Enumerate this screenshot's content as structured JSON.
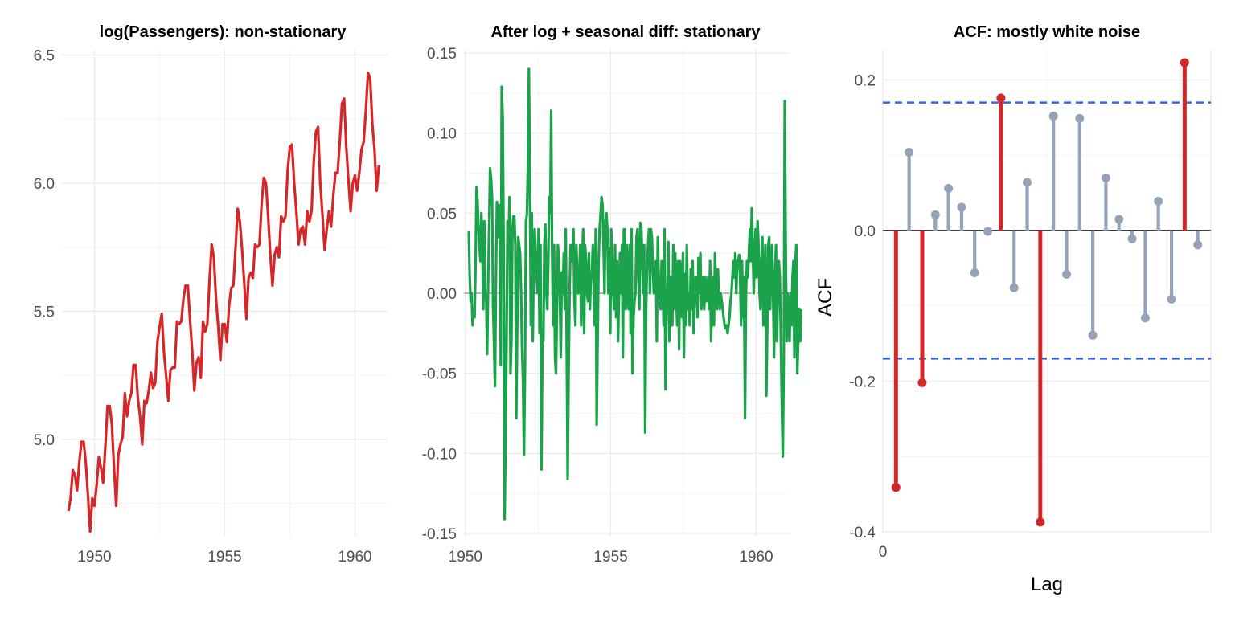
{
  "chart_data": [
    {
      "type": "line",
      "title": "log(Passengers): non-stationary",
      "xlabel": "",
      "ylabel": "",
      "xlim": [
        1948.75,
        1961.25
      ],
      "ylim": [
        4.62,
        6.52
      ],
      "x_ticks": [
        1950,
        1955,
        1960
      ],
      "x_tick_labels": [
        "1950",
        "1955",
        "1960"
      ],
      "y_ticks": [
        5.0,
        5.5,
        6.0,
        6.5
      ],
      "y_tick_labels": [
        "5.0",
        "5.5",
        "6.0",
        "6.5"
      ],
      "grid": true,
      "color": "#d62728",
      "series": [
        {
          "x_start": 1949.0,
          "x_step": 0.0833333,
          "values": [
            4.72,
            4.77,
            4.88,
            4.86,
            4.8,
            4.91,
            4.99,
            4.99,
            4.91,
            4.78,
            4.64,
            4.77,
            4.74,
            4.82,
            4.93,
            4.89,
            4.83,
            4.97,
            5.13,
            5.13,
            5.06,
            4.89,
            4.74,
            4.94,
            4.98,
            5.01,
            5.18,
            5.09,
            5.15,
            5.18,
            5.29,
            5.29,
            5.16,
            5.09,
            4.98,
            5.15,
            5.14,
            5.19,
            5.26,
            5.2,
            5.22,
            5.38,
            5.44,
            5.49,
            5.34,
            5.25,
            5.15,
            5.27,
            5.28,
            5.28,
            5.46,
            5.45,
            5.46,
            5.55,
            5.6,
            5.6,
            5.47,
            5.35,
            5.19,
            5.3,
            5.32,
            5.24,
            5.46,
            5.42,
            5.45,
            5.62,
            5.76,
            5.71,
            5.55,
            5.44,
            5.31,
            5.45,
            5.45,
            5.38,
            5.52,
            5.59,
            5.6,
            5.75,
            5.9,
            5.85,
            5.74,
            5.61,
            5.47,
            5.63,
            5.65,
            5.63,
            5.76,
            5.75,
            5.76,
            5.92,
            6.02,
            6.0,
            5.87,
            5.72,
            5.6,
            5.72,
            5.75,
            5.71,
            5.87,
            5.85,
            5.87,
            6.05,
            6.14,
            6.15,
            6.0,
            5.89,
            5.76,
            5.82,
            5.83,
            5.76,
            5.89,
            5.85,
            5.89,
            6.08,
            6.2,
            6.22,
            6.0,
            5.88,
            5.74,
            5.82,
            5.89,
            5.83,
            5.95,
            6.04,
            6.04,
            6.16,
            6.31,
            6.33,
            6.14,
            6.01,
            5.89,
            6.0,
            6.03,
            5.97,
            6.04,
            6.13,
            6.16,
            6.28,
            6.43,
            6.41,
            6.23,
            6.13,
            5.97,
            6.07
          ]
        }
      ]
    },
    {
      "type": "line",
      "title": "After log + seasonal diff: stationary",
      "xlabel": "",
      "ylabel": "",
      "xlim": [
        1949.95,
        1961.15
      ],
      "ylim": [
        -0.152,
        0.152
      ],
      "x_ticks": [
        1950,
        1955,
        1960
      ],
      "x_tick_labels": [
        "1950",
        "1955",
        "1960"
      ],
      "y_ticks": [
        -0.15,
        -0.1,
        -0.05,
        0.0,
        0.05,
        0.1,
        0.15
      ],
      "y_tick_labels": [
        "-0.15",
        "-0.10",
        "-0.05",
        "0.00",
        "0.05",
        "0.10",
        "0.15"
      ],
      "grid": true,
      "reference_line": 0,
      "color": "#1aa34a",
      "series": [
        {
          "x_start": 1950.0833,
          "x_step": 0.0333333,
          "values": [
            0.038,
            0.038,
            0.01,
            -0.005,
            0.0,
            -0.02,
            -0.01,
            -0.015,
            0.02,
            0.066,
            0.058,
            0.04,
            0.03,
            0.02,
            0.05,
            0.03,
            -0.01,
            0.045,
            0.0,
            -0.005,
            -0.038,
            0.006,
            0.04,
            0.078,
            0.072,
            0.06,
            -0.008,
            -0.03,
            -0.058,
            0.01,
            0.057,
            0.035,
            0.055,
            0.04,
            -0.045,
            0.129,
            0.11,
            0.03,
            -0.141,
            -0.09,
            -0.03,
            0.045,
            0.03,
            0.06,
            -0.05,
            -0.03,
            0.04,
            0.048,
            0.048,
            0.03,
            -0.078,
            -0.02,
            0.035,
            0.03,
            0.025,
            0.0,
            -0.035,
            -0.055,
            -0.101,
            -0.05,
            0.045,
            0.049,
            0.08,
            0.14,
            0.07,
            -0.02,
            0.05,
            -0.03,
            0.02,
            0.04,
            0.025,
            0.01,
            0.0,
            0.04,
            -0.025,
            0.03,
            -0.11,
            -0.03,
            -0.03,
            0.03,
            0.043,
            0.0,
            -0.01,
            0.02,
            0.06,
            0.05,
            0.114,
            0.025,
            -0.02,
            0.03,
            -0.04,
            -0.05,
            -0.01,
            0.03,
            0.02,
            0.0,
            -0.04,
            0.013,
            0.0,
            0.025,
            -0.01,
            0.04,
            -0.03,
            -0.116,
            -0.05,
            0.0,
            0.03,
            0.03,
            0.02,
            0.04,
            -0.005,
            -0.02,
            0.03,
            0.013,
            0.0,
            0.01,
            0.03,
            -0.02,
            0.02,
            0.04,
            -0.025,
            0.03,
            0.02,
            0.0,
            -0.005,
            0.025,
            -0.01,
            0.012,
            0.01,
            0.03,
            0.0,
            -0.02,
            0.04,
            -0.082,
            -0.03,
            0.02,
            0.04,
            0.05,
            0.06,
            0.055,
            0.03,
            0.0,
            0.045,
            0.05,
            0.04,
            0.0,
            0.028,
            -0.025,
            0.04,
            0.023,
            0.0,
            -0.01,
            0.03,
            -0.015,
            0.02,
            -0.03,
            0.0,
            0.025,
            0.0,
            0.03,
            -0.04,
            0.04,
            0.04,
            -0.01,
            0.03,
            0.0,
            -0.01,
            0.03,
            -0.025,
            0.04,
            -0.05,
            -0.015,
            -0.005,
            0.0,
            0.035,
            0.04,
            0.01,
            -0.01,
            0.044,
            0.042,
            0.02,
            0.0,
            0.03,
            -0.087,
            -0.01,
            0.02,
            0.03,
            0.04,
            0.0,
            0.04,
            0.035,
            0.015,
            0.0,
            0.01,
            0.02,
            -0.03,
            0.035,
            0.01,
            0.0,
            -0.01,
            0.02,
            0.01,
            -0.02,
            0.04,
            -0.06,
            -0.01,
            0.0,
            0.032,
            -0.03,
            0.01,
            0.0,
            -0.02,
            0.03,
            -0.01,
            0.025,
            0.0,
            -0.02,
            0.02,
            -0.035,
            0.02,
            0.0,
            -0.015,
            0.025,
            -0.04,
            0.012,
            -0.02,
            0.03,
            -0.01,
            0.0,
            -0.02,
            0.015,
            -0.01,
            0.02,
            -0.025,
            0.0,
            0.01,
            0.0,
            -0.015,
            0.022,
            0.0,
            0.025,
            -0.01,
            -0.005,
            0.01,
            -0.01,
            0.01,
            -0.005,
            0.0,
            0.01,
            -0.01,
            0.02,
            -0.03,
            0.0,
            0.01,
            -0.02,
            0.025,
            0.0,
            -0.01,
            0.015,
            0.0,
            -0.01,
            0.0,
            -0.005,
            -0.01,
            -0.015,
            -0.02,
            -0.022,
            -0.02,
            -0.025,
            -0.02,
            -0.015,
            -0.005,
            0.0,
            0.01,
            0.02,
            0.01,
            0.025,
            0.0,
            0.02,
            0.02,
            0.024,
            0.01,
            -0.02,
            0.02,
            -0.015,
            0.01,
            -0.078,
            0.0,
            0.02,
            0.01,
            0.025,
            0.04,
            0.02,
            0.053,
            0.03,
            0.0,
            0.02,
            0.04,
            0.01,
            0.045,
            0.03,
            0.0,
            -0.01,
            0.02,
            0.035,
            -0.02,
            0.0,
            0.03,
            -0.064,
            -0.02,
            0.03,
            0.035,
            -0.01,
            0.02,
            0.03,
            0.0,
            -0.04,
            0.01,
            0.03,
            -0.03,
            0.0,
            0.02,
            0.01,
            -0.03,
            -0.07,
            -0.102,
            -0.04,
            0.12,
            0.03,
            -0.03,
            0.0,
            -0.015,
            -0.03,
            0.0,
            -0.02,
            0.01,
            0.02,
            -0.04,
            0.02,
            0.03,
            -0.05,
            -0.03,
            -0.01,
            -0.03,
            -0.01
          ]
        }
      ]
    },
    {
      "type": "bar",
      "subtype": "acf-lollipop",
      "title": "ACF: mostly white noise",
      "xlabel": "Lag",
      "ylabel": "ACF",
      "xlim": [
        0,
        25
      ],
      "ylim": [
        -0.4,
        0.24
      ],
      "x_ticks": [
        0
      ],
      "x_tick_labels": [
        "0"
      ],
      "y_ticks": [
        -0.4,
        -0.2,
        0.0,
        0.2
      ],
      "y_tick_labels": [
        "-0.4",
        "-0.2",
        "0.0",
        "0.2"
      ],
      "grid": true,
      "confidence_bounds": [
        0.17,
        -0.17
      ],
      "colors": {
        "significant": "#d62728",
        "not_significant": "#95a3b8",
        "bounds": "#3366e6",
        "zero_line": "#000000"
      },
      "lags": [
        1,
        2,
        3,
        4,
        5,
        6,
        7,
        8,
        9,
        10,
        11,
        12,
        13,
        14,
        15,
        16,
        17,
        18,
        19,
        20,
        21,
        22,
        23,
        24
      ],
      "values": [
        -0.341,
        0.104,
        -0.202,
        0.021,
        0.056,
        0.031,
        -0.056,
        -0.001,
        0.176,
        -0.076,
        0.064,
        -0.387,
        0.152,
        -0.058,
        0.149,
        -0.139,
        0.07,
        0.015,
        -0.011,
        -0.116,
        0.039,
        -0.091,
        0.223,
        -0.019
      ]
    }
  ]
}
